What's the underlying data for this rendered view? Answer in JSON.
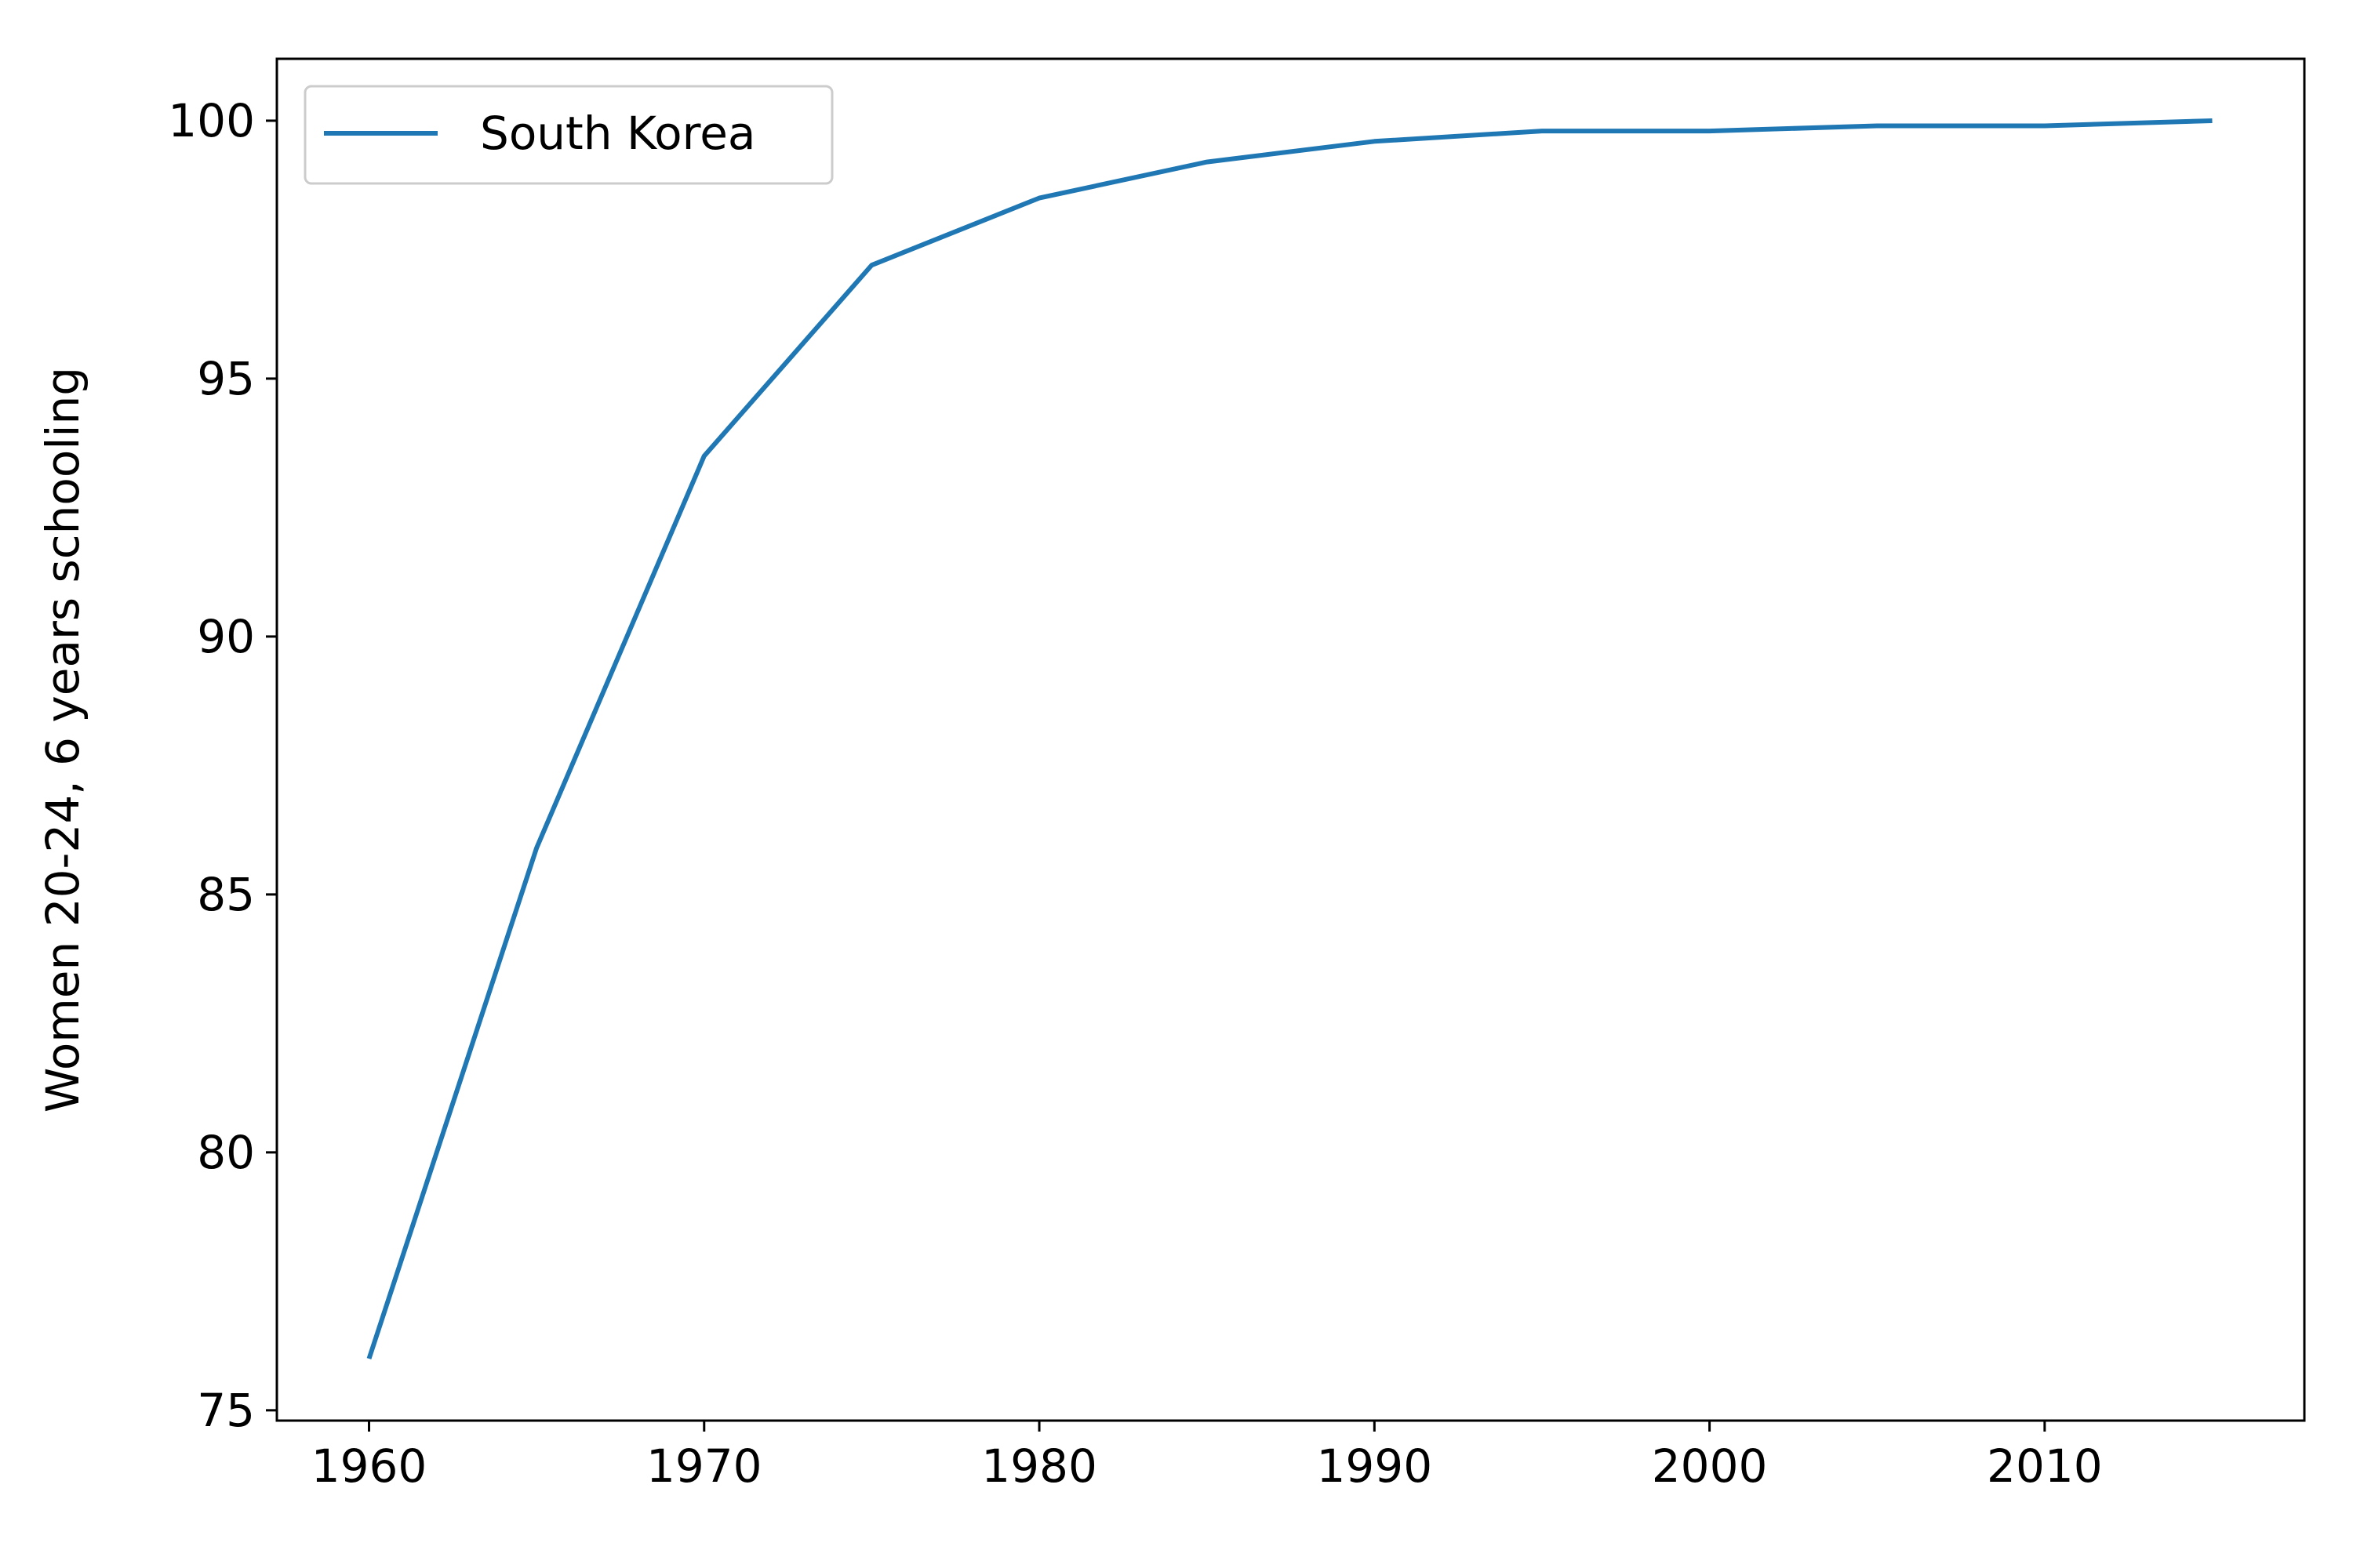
{
  "chart_data": {
    "type": "line",
    "title": "",
    "xlabel": "",
    "ylabel": "Women 20-24, 6 years schooling",
    "x": [
      1960,
      1965,
      1970,
      1975,
      1980,
      1985,
      1990,
      1995,
      2000,
      2005,
      2010,
      2015
    ],
    "series": [
      {
        "name": "South Korea",
        "color": "#1f77b4",
        "values": [
          76.0,
          85.9,
          93.5,
          97.2,
          98.5,
          99.2,
          99.6,
          99.8,
          99.8,
          99.9,
          99.9,
          100.0
        ]
      }
    ],
    "xlim": [
      1957.25,
      2017.75
    ],
    "ylim": [
      74.8,
      101.2
    ],
    "xticks": [
      1960,
      1970,
      1980,
      1990,
      2000,
      2010
    ],
    "xtick_labels": [
      "1960",
      "1970",
      "1980",
      "1990",
      "2000",
      "2010"
    ],
    "yticks": [
      75,
      80,
      85,
      90,
      95,
      100
    ],
    "ytick_labels": [
      "75",
      "80",
      "85",
      "90",
      "95",
      "100"
    ],
    "grid": false,
    "legend_position": "top-left"
  }
}
